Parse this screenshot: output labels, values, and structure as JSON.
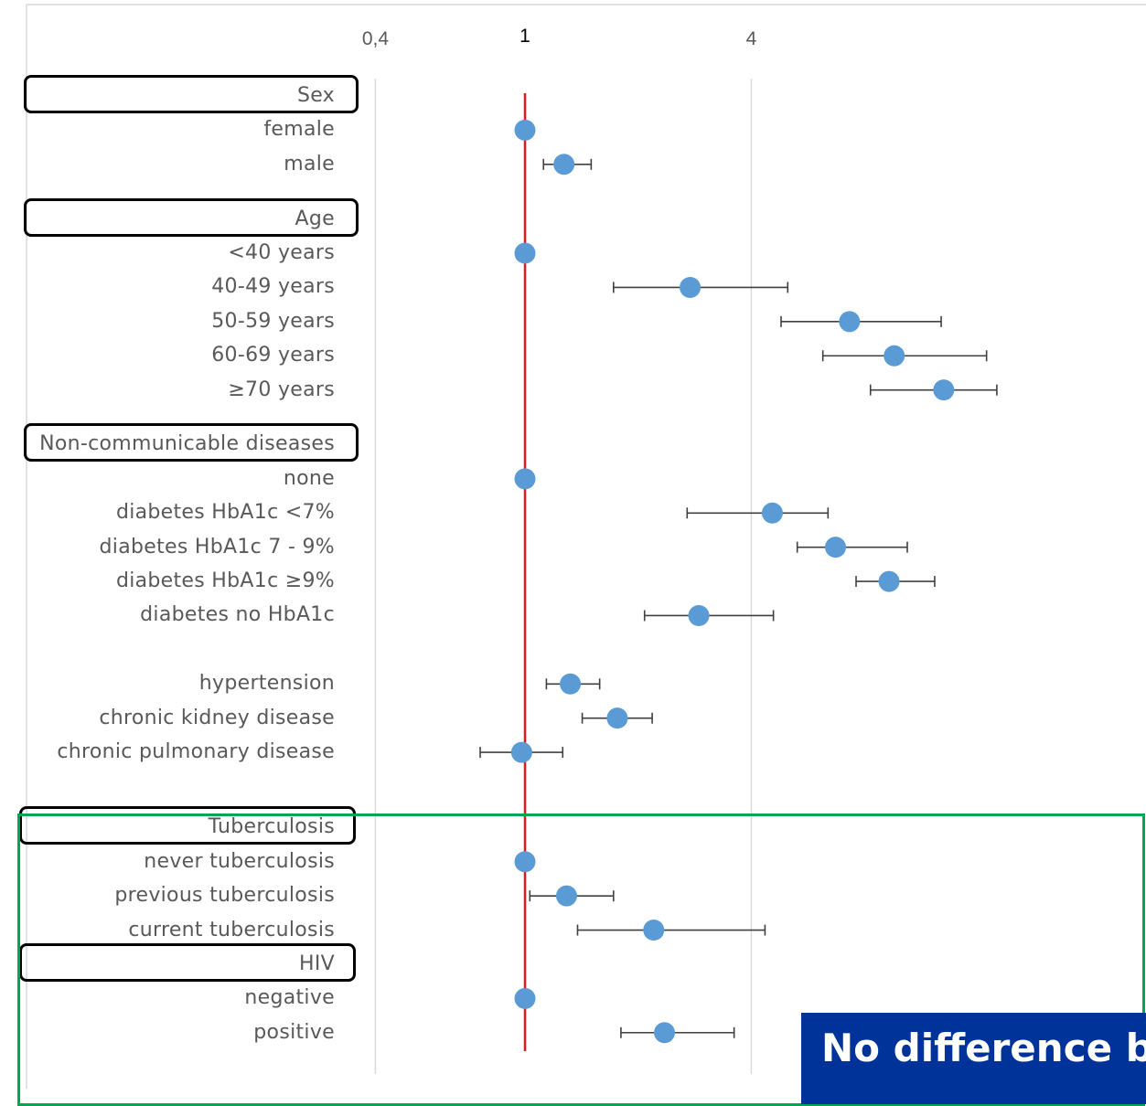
{
  "chart_data": {
    "type": "scatter",
    "subtype": "forest-plot",
    "x_scale": "log",
    "xlim": [
      0.23,
      15
    ],
    "x_ticks": [
      {
        "value": 0.4,
        "label": "0,4",
        "emphasis": false
      },
      {
        "value": 1,
        "label": "1",
        "emphasis": true
      },
      {
        "value": 4,
        "label": "4",
        "emphasis": false
      }
    ],
    "reference_value": 1,
    "reference_color": "#e31a1c",
    "point_color": "#5b9bd5",
    "whisker_color": "#404040",
    "grid": true,
    "groups": [
      {
        "label": "Sex",
        "rows": [
          {
            "label": "female",
            "estimate": 1.0,
            "low": null,
            "high": null
          },
          {
            "label": "male",
            "estimate": 1.27,
            "low": 1.12,
            "high": 1.5
          }
        ]
      },
      {
        "label": "Age",
        "rows": [
          {
            "label": "<40  years",
            "estimate": 1.0,
            "low": null,
            "high": null
          },
          {
            "label": "40-49 years",
            "estimate": 2.75,
            "low": 1.72,
            "high": 5.0
          },
          {
            "label": "50-59 years",
            "estimate": 7.3,
            "low": 4.8,
            "high": 12.8
          },
          {
            "label": "60-69 years",
            "estimate": 9.6,
            "low": 6.2,
            "high": 16.9
          },
          {
            "label": "≥70 years",
            "estimate": 13.0,
            "low": 8.3,
            "high": 18.0
          }
        ]
      },
      {
        "label": "Non-communicable diseases",
        "rows": [
          {
            "label": "none",
            "estimate": 1.0,
            "low": null,
            "high": null
          },
          {
            "label": "diabetes HbA1c <7%",
            "estimate": 4.55,
            "low": 2.7,
            "high": 6.4
          },
          {
            "label": "diabetes HbA1c 7 - 9%",
            "estimate": 6.7,
            "low": 5.3,
            "high": 10.4
          },
          {
            "label": "diabetes HbA1c ≥9%",
            "estimate": 9.3,
            "low": 7.6,
            "high": 12.3
          },
          {
            "label": "diabetes no HbA1c ",
            "estimate": 2.9,
            "low": 2.08,
            "high": 4.58
          },
          {
            "label": "",
            "spacer": true
          },
          {
            "label": "hypertension",
            "estimate": 1.32,
            "low": 1.14,
            "high": 1.58
          },
          {
            "label": "chronic kidney disease",
            "estimate": 1.76,
            "low": 1.42,
            "high": 2.18
          },
          {
            "label": "chronic pulmonary disease",
            "estimate": 0.98,
            "low": 0.76,
            "high": 1.26
          }
        ]
      },
      {
        "label": "Tuberculosis",
        "rows": [
          {
            "label": "never tuberculosis",
            "estimate": 1.0,
            "low": null,
            "high": null
          },
          {
            "label": "previous tuberculosis",
            "estimate": 1.29,
            "low": 1.03,
            "high": 1.72
          },
          {
            "label": "current tuberculosis",
            "estimate": 2.2,
            "low": 1.38,
            "high": 4.35
          }
        ]
      },
      {
        "label": "HIV",
        "rows": [
          {
            "label": "negative",
            "estimate": 1.0,
            "low": null,
            "high": null
          },
          {
            "label": "positive",
            "estimate": 2.35,
            "low": 1.8,
            "high": 3.6
          }
        ]
      }
    ]
  },
  "banner": {
    "text": "No difference b",
    "background": "#003399",
    "color": "#ffffff"
  },
  "highlight_frame_color": "#00a651"
}
